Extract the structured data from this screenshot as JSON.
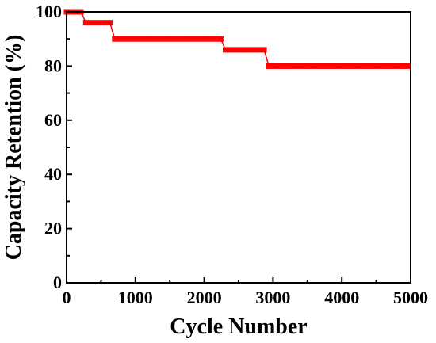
{
  "chart_data": {
    "type": "line",
    "title": "",
    "xlabel": "Cycle Number",
    "ylabel": "Capacity Retention (%)",
    "xlim": [
      0,
      5000
    ],
    "ylim": [
      0,
      100
    ],
    "x_ticks": [
      0,
      1000,
      2000,
      3000,
      4000,
      5000
    ],
    "y_ticks": [
      0,
      20,
      40,
      60,
      80,
      100
    ],
    "x_tick_labels": [
      "0",
      "1000",
      "2000",
      "3000",
      "4000",
      "5000"
    ],
    "y_tick_labels": [
      "0",
      "20",
      "40",
      "60",
      "80",
      "100"
    ],
    "grid": false,
    "legend": "none",
    "series": [
      {
        "color": "#ff0000",
        "marker": "square",
        "x": [
          0,
          70,
          140,
          210,
          280,
          350,
          420,
          490,
          560,
          630,
          700,
          770,
          840,
          910,
          980,
          1050,
          1120,
          1190,
          1260,
          1330,
          1400,
          1470,
          1540,
          1610,
          1680,
          1750,
          1820,
          1890,
          1960,
          2030,
          2100,
          2170,
          2240,
          2310,
          2380,
          2450,
          2520,
          2590,
          2660,
          2730,
          2800,
          2870,
          2940,
          3010,
          3080,
          3150,
          3220,
          3290,
          3360,
          3430,
          3500,
          3570,
          3640,
          3710,
          3780,
          3850,
          3920,
          3990,
          4060,
          4130,
          4200,
          4270,
          4340,
          4410,
          4480,
          4550,
          4620,
          4690,
          4760,
          4830,
          4900,
          4970
        ],
        "y": [
          100,
          100,
          100,
          100,
          96,
          96,
          96,
          96,
          96,
          96,
          90,
          90,
          90,
          90,
          90,
          90,
          90,
          90,
          90,
          90,
          90,
          90,
          90,
          90,
          90,
          90,
          90,
          90,
          90,
          90,
          90,
          90,
          90,
          86,
          86,
          86,
          86,
          86,
          86,
          86,
          86,
          86,
          80,
          80,
          80,
          80,
          80,
          80,
          80,
          80,
          80,
          80,
          80,
          80,
          80,
          80,
          80,
          80,
          80,
          80,
          80,
          80,
          80,
          80,
          80,
          80,
          80,
          80,
          80,
          80,
          80,
          80
        ]
      }
    ]
  }
}
